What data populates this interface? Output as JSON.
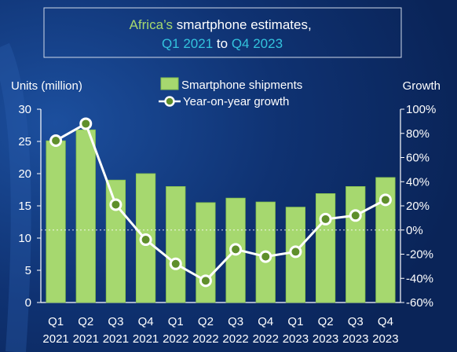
{
  "colors": {
    "bar": "#a6d86f",
    "bar_edge": "#86c24e",
    "line": "#ffffff",
    "marker_fill": "#5f8f2b",
    "title_accent_green": "#a6d86f",
    "title_accent_cyan": "#33c3dd",
    "title_white": "#ffffff",
    "axis_text": "#ffffff"
  },
  "chart_data": {
    "type": "bar",
    "title_parts": [
      {
        "text": "Africa’s",
        "color": "green"
      },
      {
        "text": " smartphone  estimates,",
        "color": "white"
      },
      {
        "text": "Q1 2021",
        "color": "cyan"
      },
      {
        "text": " to ",
        "color": "white"
      },
      {
        "text": "Q4 2023",
        "color": "cyan"
      }
    ],
    "ylabel_left": "Units (million)",
    "ylabel_right": "Growth",
    "categories": [
      [
        "Q1",
        "2021"
      ],
      [
        "Q2",
        "2021"
      ],
      [
        "Q3",
        "2021"
      ],
      [
        "Q4",
        "2021"
      ],
      [
        "Q1",
        "2022"
      ],
      [
        "Q2",
        "2022"
      ],
      [
        "Q3",
        "2022"
      ],
      [
        "Q4",
        "2022"
      ],
      [
        "Q1",
        "2023"
      ],
      [
        "Q2",
        "2023"
      ],
      [
        "Q3",
        "2023"
      ],
      [
        "Q4",
        "2023"
      ]
    ],
    "series": [
      {
        "name": "Smartphone shipments",
        "type": "bar",
        "axis": "left",
        "values": [
          25.1,
          26.8,
          19.0,
          20.0,
          18.0,
          15.5,
          16.2,
          15.6,
          14.8,
          16.9,
          18.0,
          19.4
        ]
      },
      {
        "name": "Year-on-year growth",
        "type": "line",
        "axis": "right",
        "values": [
          74,
          88,
          21,
          -8,
          -28,
          -42,
          -16,
          -22,
          -18,
          9,
          12,
          25
        ]
      }
    ],
    "y_left": {
      "min": 0,
      "max": 30,
      "ticks": [
        "0",
        "5",
        "10",
        "15",
        "20",
        "25",
        "30"
      ]
    },
    "y_right": {
      "min": -60,
      "max": 100,
      "ticks": [
        "-60%",
        "-40%",
        "-20%",
        "0%",
        "20%",
        "40%",
        "60%",
        "80%",
        "100%"
      ]
    },
    "zero_growth_reference_line": true,
    "grid": false,
    "legend_position": "top-center"
  }
}
